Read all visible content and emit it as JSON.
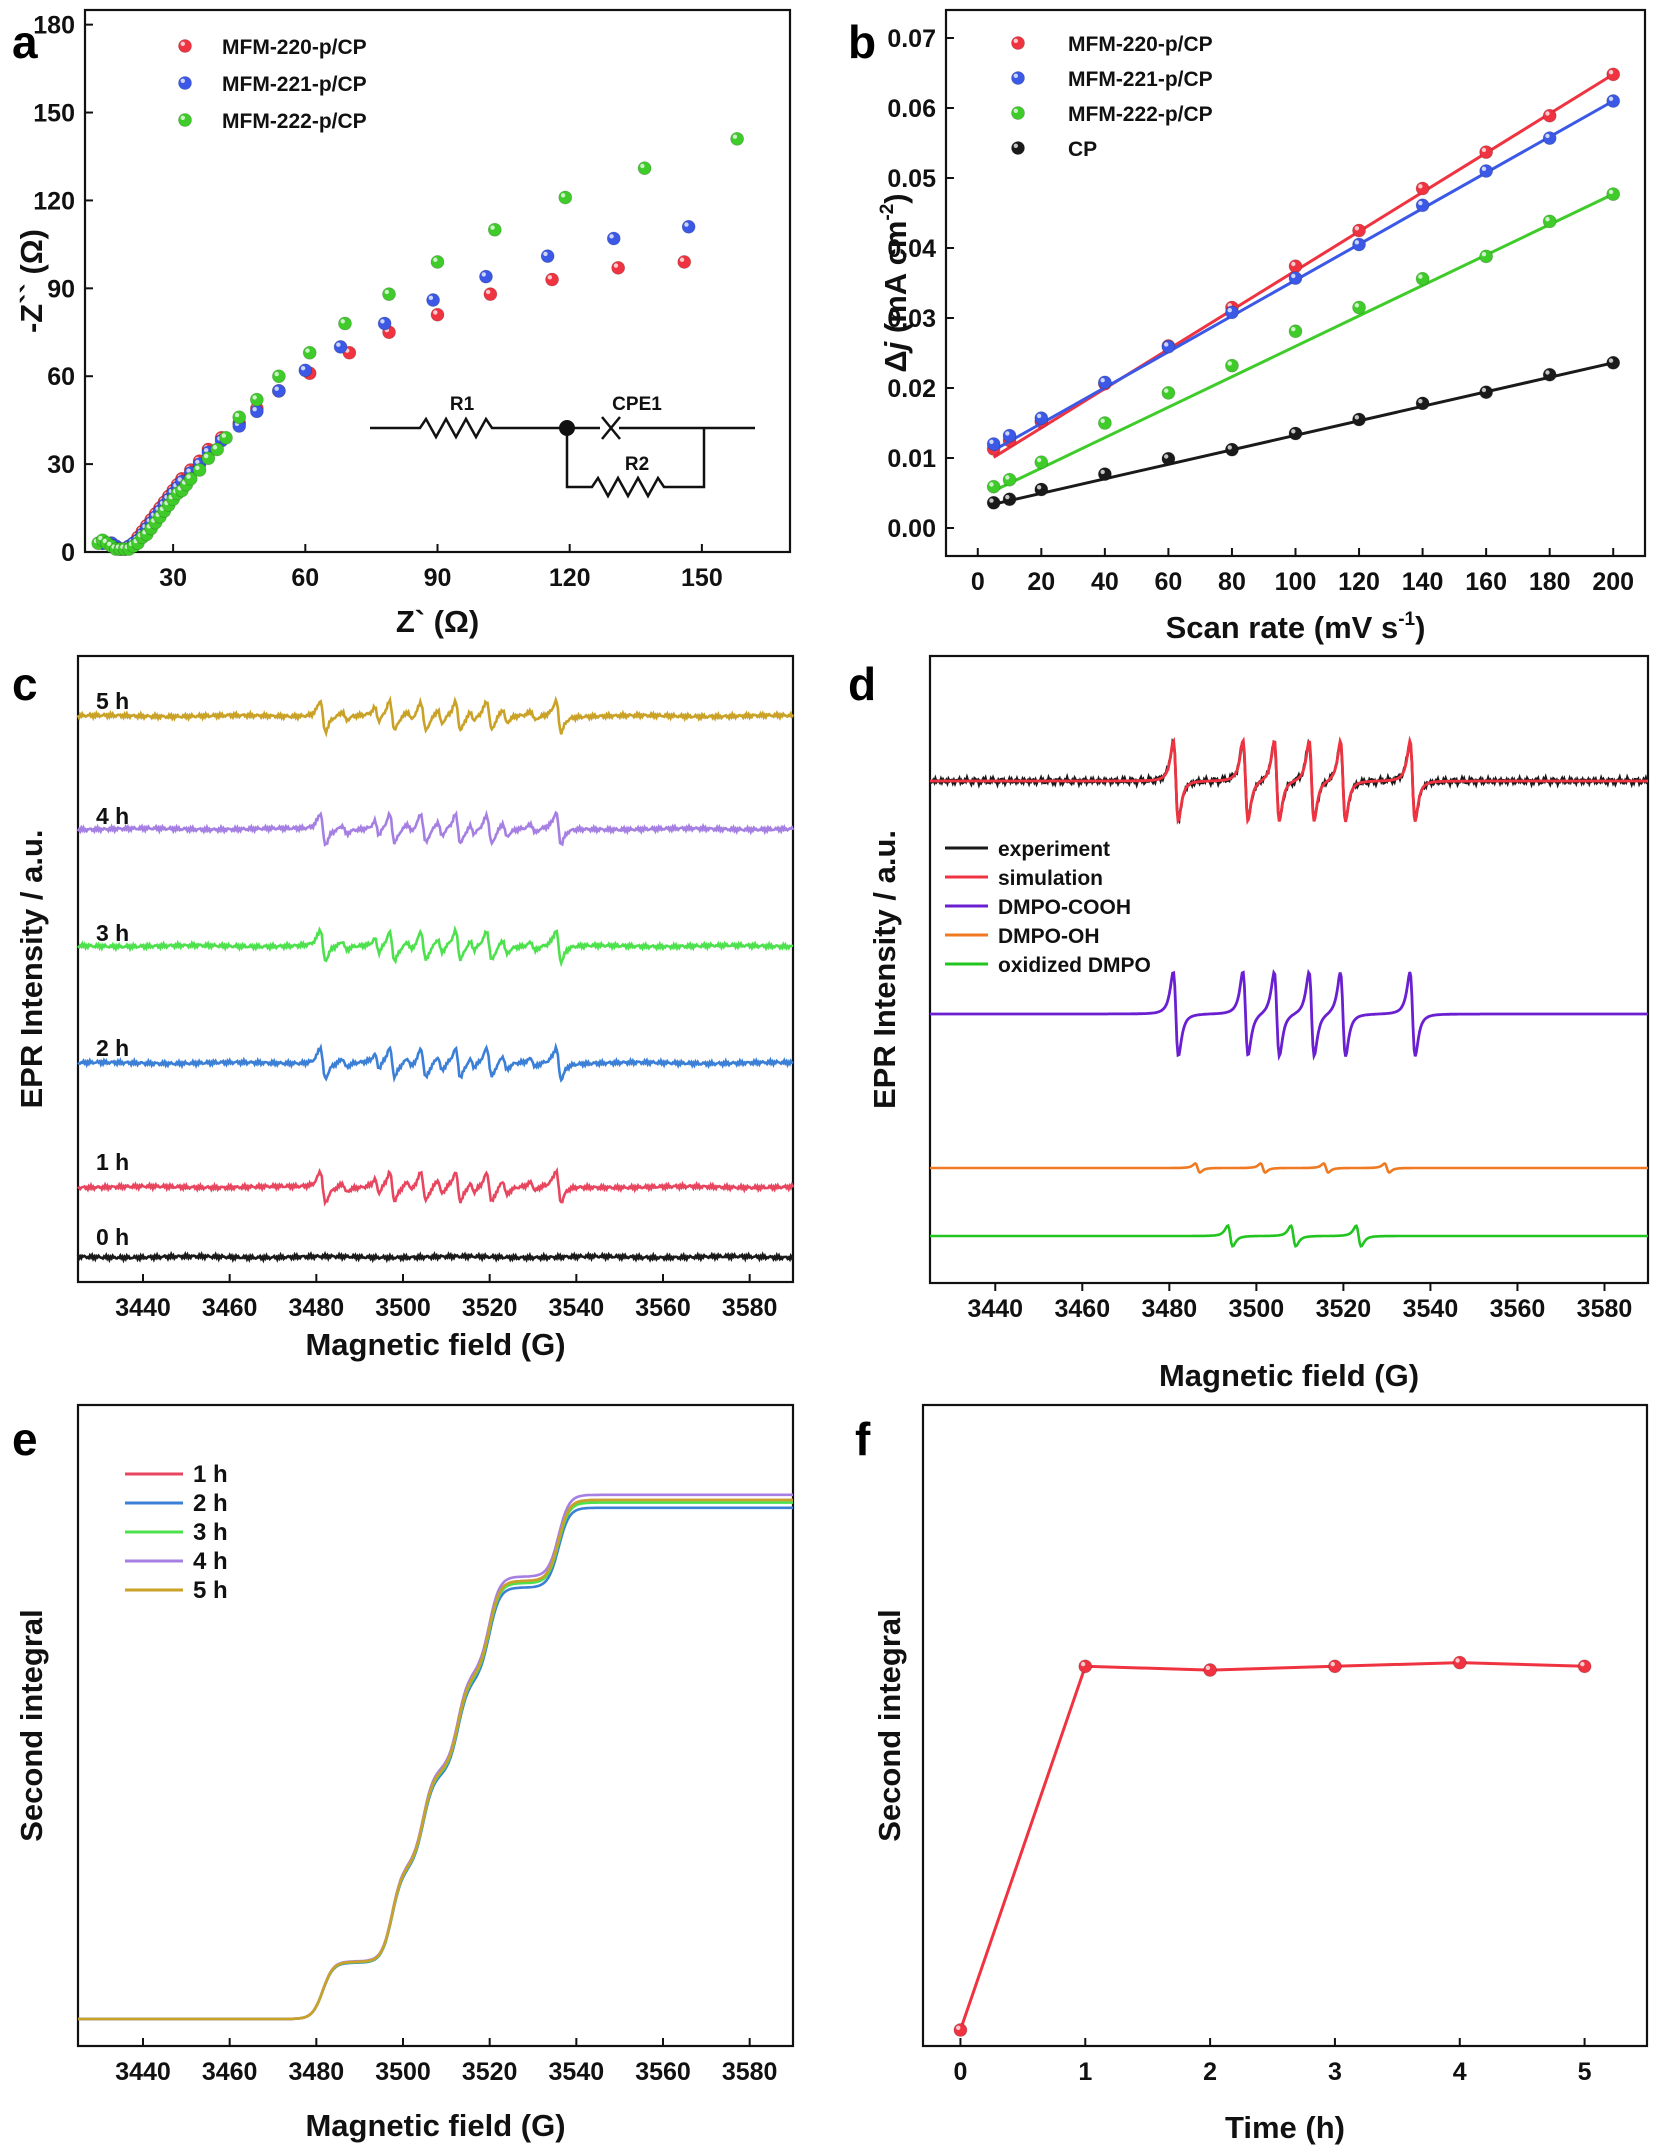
{
  "colors": {
    "red": "#ef3340",
    "blue": "#3b59e6",
    "green": "#3fcc2a",
    "black": "#1a1a1a",
    "gold": "#c9a227",
    "violet": "#a67fe3",
    "lime": "#4ee14e",
    "sky": "#3b7fd6",
    "rose": "#e8465f",
    "purple": "#6a1fd0",
    "orange": "#f07a22",
    "green2": "#22c41f"
  },
  "chart_data": [
    {
      "panel": "a",
      "type": "scatter",
      "xlabel": "Z` (Ω)",
      "ylabel": "-Z`` (Ω)",
      "xlim": [
        10,
        170
      ],
      "ylim": [
        0,
        185
      ],
      "xticks": [
        30,
        60,
        90,
        120,
        150
      ],
      "yticks": [
        0,
        30,
        60,
        90,
        120,
        150,
        180
      ],
      "legend_position": "top-left",
      "inset": {
        "labels": [
          "R1",
          "CPE1",
          "R2"
        ]
      },
      "series": [
        {
          "name": "MFM-220-p/CP",
          "color": "red",
          "points": [
            [
              14,
              3
            ],
            [
              16,
              3
            ],
            [
              17,
              2
            ],
            [
              18,
              1
            ],
            [
              19,
              1
            ],
            [
              20,
              2
            ],
            [
              21,
              3
            ],
            [
              22,
              5
            ],
            [
              23,
              7
            ],
            [
              24,
              9
            ],
            [
              25,
              11
            ],
            [
              26,
              13
            ],
            [
              27,
              15
            ],
            [
              28,
              17
            ],
            [
              29,
              19
            ],
            [
              30,
              21
            ],
            [
              31,
              23
            ],
            [
              32,
              25
            ],
            [
              34,
              28
            ],
            [
              36,
              31
            ],
            [
              38,
              35
            ],
            [
              41,
              39
            ],
            [
              45,
              44
            ],
            [
              49,
              49
            ],
            [
              54,
              55
            ],
            [
              61,
              61
            ],
            [
              70,
              68
            ],
            [
              79,
              75
            ],
            [
              90,
              81
            ],
            [
              102,
              88
            ],
            [
              116,
              93
            ],
            [
              131,
              97
            ],
            [
              146,
              99
            ]
          ]
        },
        {
          "name": "MFM-221-p/CP",
          "color": "blue",
          "points": [
            [
              14,
              3
            ],
            [
              16,
              3
            ],
            [
              17,
              2
            ],
            [
              18,
              1
            ],
            [
              19,
              1
            ],
            [
              20,
              2
            ],
            [
              21,
              3
            ],
            [
              22,
              4
            ],
            [
              23,
              6
            ],
            [
              24,
              8
            ],
            [
              25,
              10
            ],
            [
              26,
              12
            ],
            [
              27,
              14
            ],
            [
              28,
              16
            ],
            [
              29,
              18
            ],
            [
              30,
              20
            ],
            [
              31,
              22
            ],
            [
              32,
              24
            ],
            [
              34,
              27
            ],
            [
              36,
              30
            ],
            [
              38,
              34
            ],
            [
              41,
              38
            ],
            [
              45,
              43
            ],
            [
              49,
              48
            ],
            [
              54,
              55
            ],
            [
              60,
              62
            ],
            [
              68,
              70
            ],
            [
              78,
              78
            ],
            [
              89,
              86
            ],
            [
              101,
              94
            ],
            [
              115,
              101
            ],
            [
              130,
              107
            ],
            [
              147,
              111
            ]
          ]
        },
        {
          "name": "MFM-222-p/CP",
          "color": "green",
          "points": [
            [
              13,
              3
            ],
            [
              14,
              4
            ],
            [
              15,
              3
            ],
            [
              16,
              2
            ],
            [
              17,
              1
            ],
            [
              18,
              1
            ],
            [
              19,
              1
            ],
            [
              20,
              1
            ],
            [
              21,
              2
            ],
            [
              22,
              3
            ],
            [
              23,
              5
            ],
            [
              24,
              6
            ],
            [
              25,
              8
            ],
            [
              26,
              10
            ],
            [
              27,
              12
            ],
            [
              28,
              14
            ],
            [
              29,
              16
            ],
            [
              30,
              18
            ],
            [
              31,
              20
            ],
            [
              32,
              21
            ],
            [
              33,
              23
            ],
            [
              34,
              25
            ],
            [
              36,
              28
            ],
            [
              38,
              32
            ],
            [
              40,
              35
            ],
            [
              42,
              39
            ],
            [
              45,
              46
            ],
            [
              49,
              52
            ],
            [
              54,
              60
            ],
            [
              61,
              68
            ],
            [
              69,
              78
            ],
            [
              79,
              88
            ],
            [
              90,
              99
            ],
            [
              103,
              110
            ],
            [
              119,
              121
            ],
            [
              137,
              131
            ],
            [
              158,
              141
            ]
          ]
        }
      ]
    },
    {
      "panel": "b",
      "type": "scatter",
      "xlabel": "Scan rate (mV s",
      "xlabel_sup": "-1",
      "xlabel_end": ")",
      "ylabel_prefix": "Δ",
      "ylabel_italic": "j",
      "ylabel_rest": " (mA cm",
      "ylabel_sup": "-2",
      "ylabel_end": ")",
      "xlim": [
        -10,
        210
      ],
      "ylim": [
        -0.004,
        0.074
      ],
      "xticks": [
        0,
        20,
        40,
        60,
        80,
        100,
        120,
        140,
        160,
        180,
        200
      ],
      "yticks": [
        "0.00",
        "0.01",
        "0.02",
        "0.03",
        "0.04",
        "0.05",
        "0.06",
        "0.07"
      ],
      "legend_position": "top-left",
      "series": [
        {
          "name": "MFM-220-p/CP",
          "color": "red",
          "x": [
            5,
            10,
            20,
            40,
            60,
            80,
            100,
            120,
            140,
            160,
            180,
            200
          ],
          "values": [
            0.0113,
            0.0125,
            0.0152,
            0.0206,
            0.026,
            0.0315,
            0.0374,
            0.0425,
            0.0485,
            0.0537,
            0.0589,
            0.0648
          ],
          "fit": [
            0.0101,
            0.0648
          ]
        },
        {
          "name": "MFM-221-p/CP",
          "color": "blue",
          "x": [
            5,
            10,
            20,
            40,
            60,
            80,
            100,
            120,
            140,
            160,
            180,
            200
          ],
          "values": [
            0.012,
            0.0132,
            0.0157,
            0.0208,
            0.0259,
            0.0308,
            0.0357,
            0.0405,
            0.0461,
            0.051,
            0.0557,
            0.061
          ],
          "fit": [
            0.0111,
            0.061
          ]
        },
        {
          "name": "MFM-222-p/CP",
          "color": "green",
          "x": [
            5,
            10,
            20,
            40,
            60,
            80,
            100,
            120,
            140,
            160,
            180,
            200
          ],
          "values": [
            0.0059,
            0.0069,
            0.0094,
            0.015,
            0.0193,
            0.0232,
            0.0281,
            0.0315,
            0.0356,
            0.0388,
            0.0438,
            0.0477
          ],
          "fit": [
            0.0053,
            0.0477
          ]
        },
        {
          "name": "CP",
          "color": "black",
          "x": [
            5,
            10,
            20,
            40,
            60,
            80,
            100,
            120,
            140,
            160,
            180,
            200
          ],
          "values": [
            0.0036,
            0.0041,
            0.0055,
            0.0077,
            0.0099,
            0.0112,
            0.0135,
            0.0155,
            0.0178,
            0.0194,
            0.0219,
            0.0236
          ],
          "fit": [
            0.0034,
            0.0236
          ]
        }
      ]
    },
    {
      "panel": "c",
      "type": "line",
      "xlabel": "Magnetic field (G)",
      "ylabel": "EPR Intensity / a.u.",
      "xlim": [
        3425,
        3590
      ],
      "xticks": [
        3440,
        3460,
        3480,
        3500,
        3520,
        3540,
        3560,
        3580
      ],
      "peak_fields": [
        3481.5,
        3497.5,
        3504.7,
        3512.7,
        3519.9,
        3535.9
      ],
      "series": [
        {
          "name": "0 h",
          "color": "black",
          "amplitude": 0
        },
        {
          "name": "1 h",
          "color": "rose",
          "amplitude": 1
        },
        {
          "name": "2 h",
          "color": "sky",
          "amplitude": 1
        },
        {
          "name": "3 h",
          "color": "lime",
          "amplitude": 1
        },
        {
          "name": "4 h",
          "color": "violet",
          "amplitude": 1
        },
        {
          "name": "5 h",
          "color": "gold",
          "amplitude": 1
        }
      ]
    },
    {
      "panel": "d",
      "type": "line",
      "xlabel": "Magnetic field (G)",
      "ylabel": "EPR Intensity / a.u.",
      "xlim": [
        3425,
        3590
      ],
      "xticks": [
        3440,
        3460,
        3480,
        3500,
        3520,
        3540,
        3560,
        3580
      ],
      "legend_position": "left",
      "series": [
        {
          "name": "experiment",
          "color": "black",
          "peak_fields": [
            3481.5,
            3497.5,
            3504.7,
            3512.7,
            3519.9,
            3535.9
          ]
        },
        {
          "name": "simulation",
          "color": "red",
          "peak_fields": [
            3481.5,
            3497.5,
            3504.7,
            3512.7,
            3519.9,
            3535.9
          ]
        },
        {
          "name": "DMPO-COOH",
          "color": "purple",
          "peak_fields": [
            3481.5,
            3497.5,
            3504.7,
            3512.7,
            3519.9,
            3535.9
          ]
        },
        {
          "name": "DMPO-OH",
          "color": "orange",
          "peak_fields": [
            3486.5,
            3501.5,
            3516.0,
            3530.0
          ]
        },
        {
          "name": "oxidized DMPO",
          "color": "green2",
          "peak_fields": [
            3494.0,
            3508.5,
            3523.5
          ]
        }
      ]
    },
    {
      "panel": "e",
      "type": "line",
      "xlabel": "Magnetic field (G)",
      "ylabel": "Second integral",
      "xlim": [
        3425,
        3590
      ],
      "xticks": [
        3440,
        3460,
        3480,
        3500,
        3520,
        3540,
        3560,
        3580
      ],
      "legend_position": "top-left",
      "step_fields": [
        3481.5,
        3497.5,
        3504.7,
        3512.7,
        3519.9,
        3535.9
      ],
      "step_heights": [
        0.6,
        1.0,
        1.0,
        1.0,
        1.0,
        0.85
      ],
      "series": [
        {
          "name": "1 h",
          "color": "rose",
          "scale": 1.0
        },
        {
          "name": "2 h",
          "color": "sky",
          "scale": 0.985
        },
        {
          "name": "3 h",
          "color": "lime",
          "scale": 0.995
        },
        {
          "name": "4 h",
          "color": "violet",
          "scale": 1.01
        },
        {
          "name": "5 h",
          "color": "gold",
          "scale": 1.0
        }
      ]
    },
    {
      "panel": "f",
      "type": "line",
      "xlabel": "Time (h)",
      "ylabel": "Second integral",
      "xlim": [
        -0.3,
        5.5
      ],
      "xticks": [
        0,
        1,
        2,
        3,
        4,
        5
      ],
      "series": [
        {
          "name": "",
          "color": "red",
          "x": [
            0,
            1,
            2,
            3,
            4,
            5
          ],
          "values": [
            0,
            0.975,
            0.965,
            0.975,
            0.985,
            0.975
          ]
        }
      ]
    }
  ]
}
